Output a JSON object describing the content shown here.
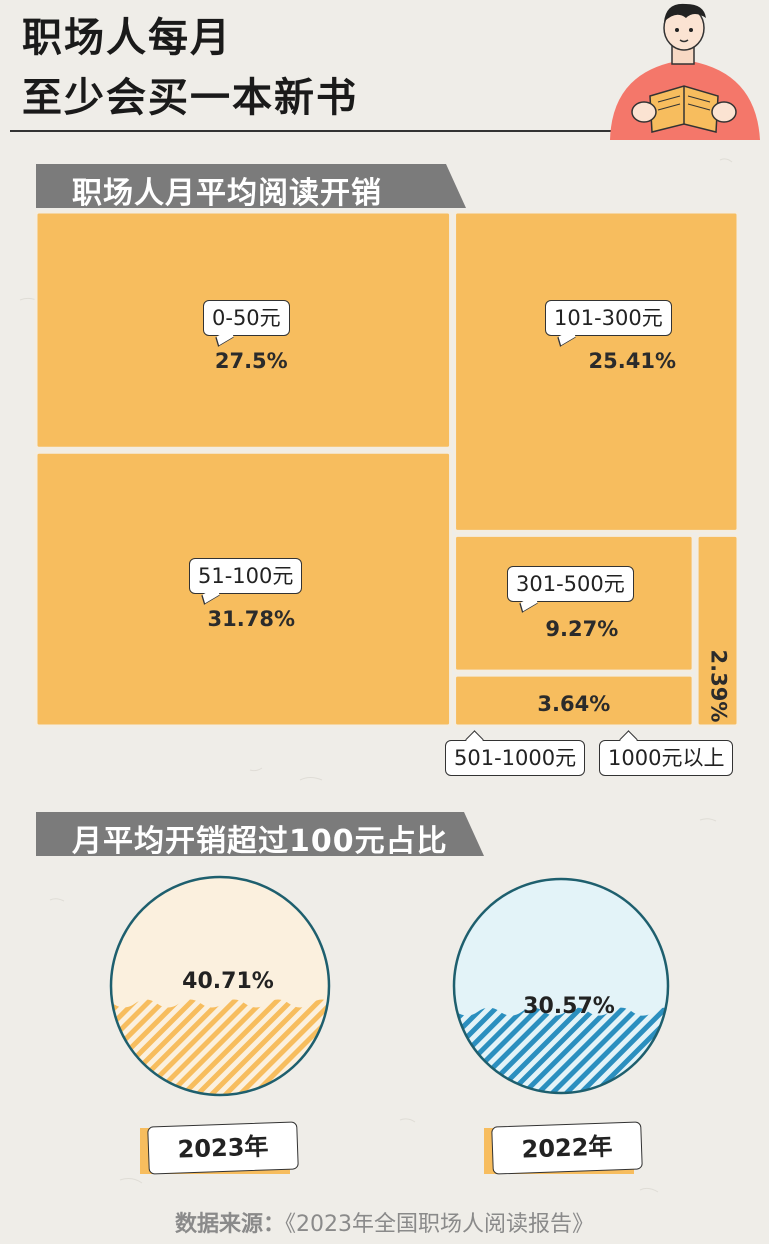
{
  "header": {
    "title_line1": "职场人每月",
    "title_line2": "至少会买一本新书"
  },
  "section1": {
    "heading": "职场人月平均阅读开销"
  },
  "section2": {
    "heading": "月平均开销超过100元占比"
  },
  "colors": {
    "accent": "#f7bd5e",
    "banner": "#7b7b7b",
    "blue": "#2b8fbf",
    "light_blue": "#e3f3f8",
    "cream": "#fbf0de"
  },
  "chart_data": [
    {
      "type": "treemap",
      "title": "职场人月平均阅读开销",
      "categories": [
        "0-50元",
        "51-100元",
        "101-300元",
        "301-500元",
        "501-1000元",
        "1000元以上"
      ],
      "values": [
        27.5,
        31.78,
        25.41,
        9.27,
        3.64,
        2.39
      ],
      "labels": [
        "27.5%",
        "31.78%",
        "25.41%",
        "9.27%",
        "3.64%",
        "2.39%"
      ]
    },
    {
      "type": "gauge",
      "title": "月平均开销超过100元占比",
      "categories": [
        "2023年",
        "2022年"
      ],
      "values": [
        40.71,
        30.57
      ],
      "labels": [
        "40.71%",
        "30.57%"
      ]
    }
  ],
  "source": {
    "label": "数据来源：",
    "text": "《2023年全国职场人阅读报告》"
  }
}
